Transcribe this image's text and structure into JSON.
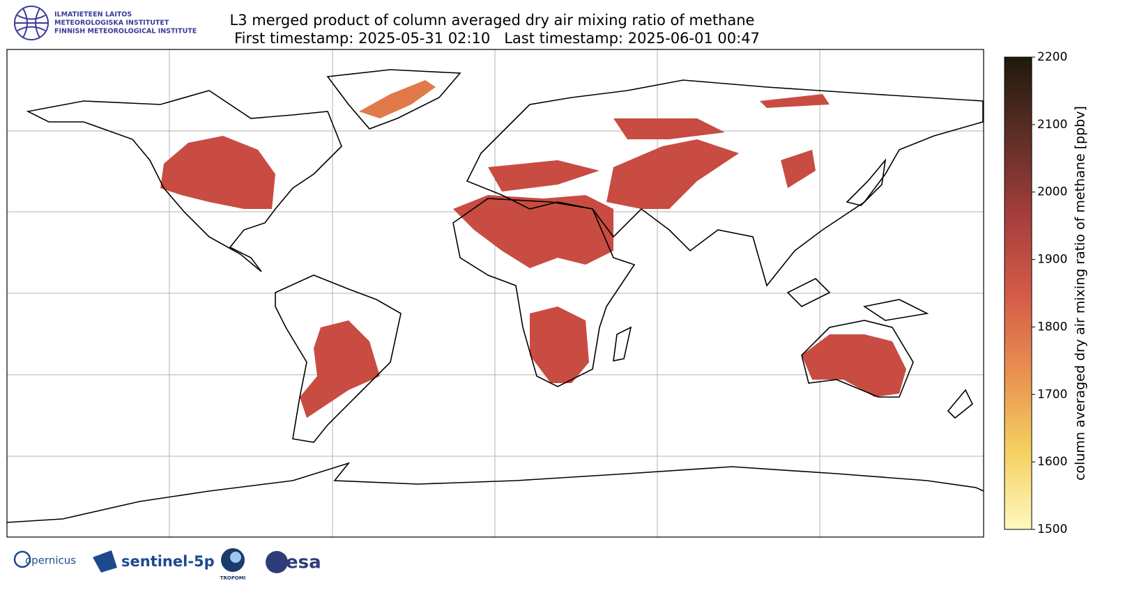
{
  "header": {
    "institute": [
      "ILMATIETEEN LAITOS",
      "METEOROLOGISKA INSTITUTET",
      "FINNISH METEOROLOGICAL INSTITUTE"
    ]
  },
  "title": [
    "L3 merged product of column averaged dry air mixing ratio of methane",
    "First timestamp: 2025-05-31 02:10   Last timestamp: 2025-06-01 00:47"
  ],
  "colorbar": {
    "label": "column averaged dry air mixing ratio of methane [ppbv]",
    "lim": [
      1500,
      2200
    ],
    "ticks": [
      1500,
      1600,
      1700,
      1800,
      1900,
      2000,
      2100,
      2200
    ],
    "colors": [
      "#fff8c0",
      "#f5d060",
      "#e89050",
      "#d45a48",
      "#a43e3c",
      "#5e2e26",
      "#1e1a0c"
    ]
  },
  "logos": [
    "opernicus",
    "sentinel-5p",
    "TROPOMI",
    "esa"
  ]
}
